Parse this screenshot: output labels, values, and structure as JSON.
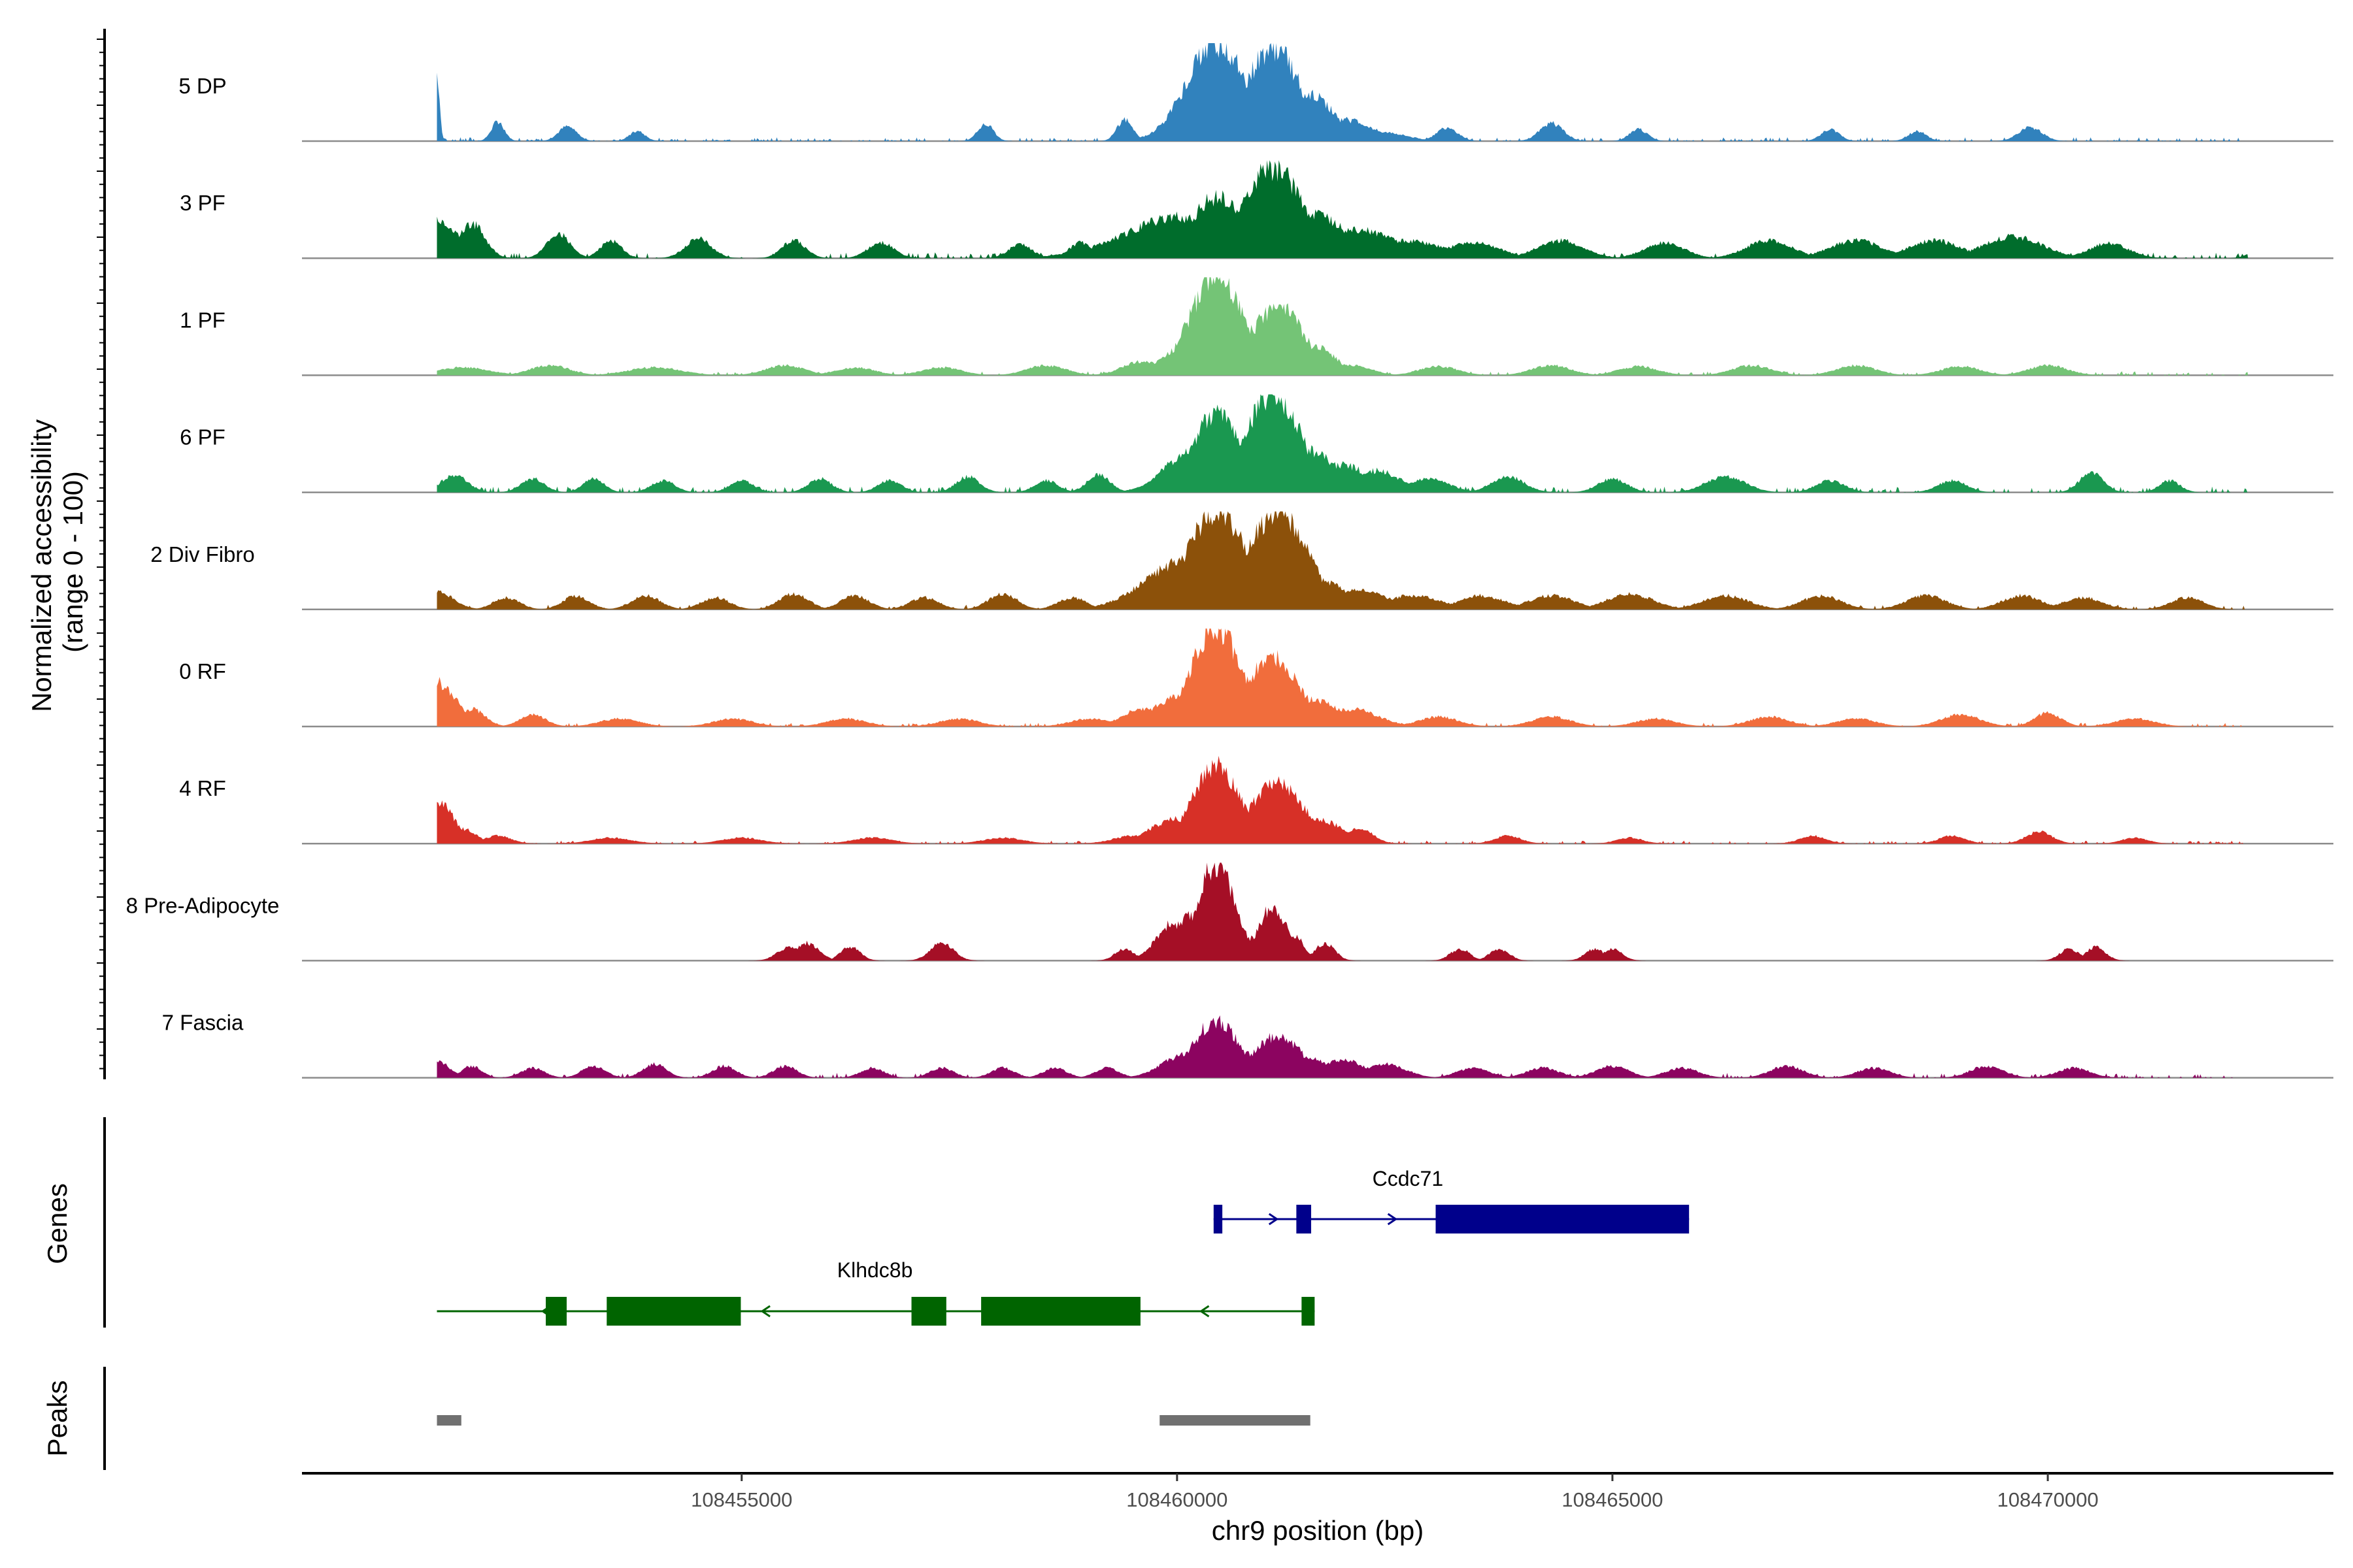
{
  "chart_data": {
    "type": "area",
    "title": "",
    "ylabel": "Normalized accessibility\n(range 0 - 100)",
    "xlabel": "chr9 position (bp)",
    "chromosome": "chr9",
    "xlim": [
      108449950,
      108473280
    ],
    "x_ticks": [
      108455000,
      108460000,
      108465000,
      108470000
    ],
    "x_tick_labels": [
      "108455000",
      "108460000",
      "108465000",
      "108470000"
    ],
    "y_range": [
      0,
      100
    ],
    "tracks": [
      {
        "name": "5 DP",
        "color": "#3182bd",
        "peaks": [
          [
            108451500,
            70,
            4
          ],
          [
            108452200,
            20,
            10
          ],
          [
            108453000,
            15,
            14
          ],
          [
            108453800,
            10,
            12
          ],
          [
            108457800,
            18,
            12
          ],
          [
            108459400,
            22,
            12
          ],
          [
            108460050,
            12,
            10
          ],
          [
            108460200,
            25,
            28
          ],
          [
            108460450,
            100,
            45
          ],
          [
            108460850,
            60,
            32
          ],
          [
            108461100,
            95,
            42
          ],
          [
            108461500,
            48,
            40
          ],
          [
            108461900,
            22,
            45
          ],
          [
            108462300,
            10,
            40
          ],
          [
            108463100,
            14,
            16
          ],
          [
            108464300,
            18,
            18
          ],
          [
            108465300,
            12,
            14
          ],
          [
            108467500,
            12,
            14
          ],
          [
            108468500,
            10,
            14
          ],
          [
            108469800,
            14,
            18
          ]
        ],
        "noise": 4
      },
      {
        "name": "3 PF",
        "color": "#006d2c",
        "peaks": [
          [
            108451500,
            40,
            30
          ],
          [
            108451900,
            35,
            20
          ],
          [
            108452900,
            25,
            18
          ],
          [
            108453500,
            18,
            16
          ],
          [
            108454500,
            20,
            20
          ],
          [
            108455600,
            18,
            18
          ],
          [
            108456600,
            16,
            20
          ],
          [
            108458200,
            14,
            18
          ],
          [
            108458900,
            16,
            18
          ],
          [
            108459600,
            22,
            30
          ],
          [
            108460050,
            42,
            85
          ],
          [
            108460450,
            62,
            40
          ],
          [
            108460750,
            50,
            35
          ],
          [
            108461100,
            92,
            45
          ],
          [
            108461550,
            45,
            55
          ],
          [
            108462000,
            30,
            70
          ],
          [
            108462600,
            18,
            60
          ],
          [
            108463400,
            16,
            40
          ],
          [
            108464400,
            18,
            35
          ],
          [
            108465600,
            16,
            30
          ],
          [
            108466800,
            18,
            35
          ],
          [
            108467800,
            18,
            40
          ],
          [
            108468700,
            18,
            40
          ],
          [
            108469600,
            22,
            45
          ],
          [
            108470700,
            15,
            30
          ],
          [
            108472500,
            14,
            18
          ]
        ],
        "noise": 6
      },
      {
        "name": "1 PF",
        "color": "#74c476",
        "peaks": [
          [
            108451800,
            8,
            40
          ],
          [
            108452800,
            10,
            30
          ],
          [
            108454000,
            8,
            40
          ],
          [
            108455500,
            10,
            30
          ],
          [
            108456300,
            8,
            30
          ],
          [
            108457300,
            8,
            30
          ],
          [
            108458500,
            10,
            30
          ],
          [
            108459600,
            14,
            30
          ],
          [
            108460100,
            30,
            35
          ],
          [
            108460450,
            100,
            40
          ],
          [
            108460850,
            45,
            30
          ],
          [
            108461150,
            70,
            40
          ],
          [
            108461550,
            30,
            35
          ],
          [
            108462000,
            10,
            30
          ],
          [
            108463000,
            9,
            30
          ],
          [
            108464300,
            10,
            30
          ],
          [
            108465300,
            9,
            30
          ],
          [
            108466600,
            10,
            30
          ],
          [
            108467800,
            10,
            30
          ],
          [
            108469000,
            9,
            30
          ],
          [
            108470000,
            10,
            30
          ]
        ],
        "noise": 4
      },
      {
        "name": "6 PF",
        "color": "#1a9850",
        "peaks": [
          [
            108451700,
            18,
            20
          ],
          [
            108452600,
            14,
            18
          ],
          [
            108453300,
            14,
            16
          ],
          [
            108454100,
            12,
            18
          ],
          [
            108455000,
            12,
            18
          ],
          [
            108455900,
            14,
            18
          ],
          [
            108456700,
            12,
            18
          ],
          [
            108457600,
            16,
            18
          ],
          [
            108458500,
            12,
            18
          ],
          [
            108459100,
            18,
            18
          ],
          [
            108459800,
            16,
            20
          ],
          [
            108460150,
            40,
            40
          ],
          [
            108460450,
            82,
            35
          ],
          [
            108460850,
            42,
            30
          ],
          [
            108461100,
            100,
            42
          ],
          [
            108461550,
            42,
            35
          ],
          [
            108461900,
            28,
            40
          ],
          [
            108462300,
            22,
            35
          ],
          [
            108462900,
            14,
            30
          ],
          [
            108463800,
            16,
            25
          ],
          [
            108465000,
            14,
            22
          ],
          [
            108466300,
            16,
            30
          ],
          [
            108467500,
            12,
            22
          ],
          [
            108468900,
            12,
            22
          ],
          [
            108470500,
            20,
            18
          ],
          [
            108471400,
            12,
            16
          ]
        ],
        "noise": 6
      },
      {
        "name": "2 Div Fibro",
        "color": "#8c510a",
        "peaks": [
          [
            108451500,
            18,
            25
          ],
          [
            108452300,
            12,
            20
          ],
          [
            108453100,
            14,
            20
          ],
          [
            108453900,
            14,
            22
          ],
          [
            108454700,
            12,
            22
          ],
          [
            108455600,
            16,
            22
          ],
          [
            108456300,
            14,
            22
          ],
          [
            108457100,
            12,
            22
          ],
          [
            108458000,
            16,
            22
          ],
          [
            108458800,
            12,
            22
          ],
          [
            108459600,
            14,
            25
          ],
          [
            108460100,
            50,
            60
          ],
          [
            108460450,
            100,
            45
          ],
          [
            108460850,
            40,
            35
          ],
          [
            108461150,
            100,
            45
          ],
          [
            108461600,
            30,
            45
          ],
          [
            108462000,
            20,
            55
          ],
          [
            108462700,
            14,
            45
          ],
          [
            108463500,
            14,
            35
          ],
          [
            108464300,
            14,
            35
          ],
          [
            108465200,
            16,
            35
          ],
          [
            108466300,
            14,
            35
          ],
          [
            108467400,
            14,
            30
          ],
          [
            108468600,
            14,
            30
          ],
          [
            108469700,
            14,
            30
          ],
          [
            108470400,
            12,
            30
          ],
          [
            108471600,
            12,
            25
          ]
        ],
        "noise": 5
      },
      {
        "name": "0 RF",
        "color": "#f16d3c",
        "peaks": [
          [
            108451500,
            45,
            30
          ],
          [
            108451900,
            18,
            20
          ],
          [
            108452600,
            12,
            20
          ],
          [
            108453600,
            8,
            30
          ],
          [
            108454900,
            8,
            30
          ],
          [
            108456200,
            8,
            30
          ],
          [
            108457500,
            8,
            30
          ],
          [
            108459000,
            8,
            30
          ],
          [
            108459600,
            18,
            30
          ],
          [
            108460050,
            32,
            40
          ],
          [
            108460450,
            100,
            38
          ],
          [
            108460800,
            30,
            30
          ],
          [
            108461100,
            70,
            40
          ],
          [
            108461550,
            28,
            40
          ],
          [
            108462000,
            18,
            40
          ],
          [
            108463000,
            10,
            30
          ],
          [
            108464300,
            10,
            30
          ],
          [
            108465500,
            8,
            30
          ],
          [
            108466800,
            10,
            30
          ],
          [
            108467800,
            8,
            30
          ],
          [
            108469000,
            12,
            30
          ],
          [
            108470000,
            14,
            20
          ],
          [
            108471000,
            8,
            30
          ]
        ],
        "noise": 4
      },
      {
        "name": "4 RF",
        "color": "#d73027",
        "peaks": [
          [
            108451500,
            45,
            25
          ],
          [
            108451800,
            15,
            20
          ],
          [
            108452200,
            8,
            20
          ],
          [
            108453500,
            6,
            30
          ],
          [
            108455000,
            6,
            30
          ],
          [
            108456500,
            6,
            30
          ],
          [
            108458000,
            6,
            30
          ],
          [
            108459500,
            8,
            30
          ],
          [
            108460000,
            25,
            40
          ],
          [
            108460450,
            80,
            35
          ],
          [
            108460850,
            30,
            30
          ],
          [
            108461150,
            62,
            40
          ],
          [
            108461600,
            25,
            40
          ],
          [
            108462100,
            15,
            20
          ],
          [
            108463800,
            8,
            20
          ],
          [
            108465200,
            6,
            20
          ],
          [
            108467300,
            8,
            20
          ],
          [
            108468900,
            8,
            20
          ],
          [
            108469900,
            12,
            20
          ],
          [
            108471000,
            6,
            20
          ]
        ],
        "noise": 3
      },
      {
        "name": "8 Pre-Adipocyte",
        "color": "#a50f26",
        "peaks": [
          [
            108455550,
            14,
            18
          ],
          [
            108455750,
            18,
            18
          ],
          [
            108456250,
            14,
            15
          ],
          [
            108457300,
            18,
            18
          ],
          [
            108459400,
            12,
            15
          ],
          [
            108459950,
            38,
            25
          ],
          [
            108460150,
            45,
            22
          ],
          [
            108460450,
            100,
            28
          ],
          [
            108460600,
            40,
            20
          ],
          [
            108460900,
            25,
            18
          ],
          [
            108461100,
            55,
            22
          ],
          [
            108461350,
            25,
            15
          ],
          [
            108461700,
            18,
            15
          ],
          [
            108463250,
            12,
            15
          ],
          [
            108463700,
            12,
            15
          ],
          [
            108464800,
            12,
            15
          ],
          [
            108465000,
            12,
            15
          ],
          [
            108470250,
            12,
            15
          ],
          [
            108470550,
            14,
            15
          ]
        ],
        "noise": 0
      },
      {
        "name": "7 Fascia",
        "color": "#8c0460",
        "peaks": [
          [
            108451500,
            18,
            18
          ],
          [
            108451900,
            12,
            15
          ],
          [
            108452600,
            10,
            18
          ],
          [
            108453300,
            12,
            18
          ],
          [
            108454000,
            14,
            18
          ],
          [
            108454800,
            12,
            18
          ],
          [
            108455500,
            12,
            18
          ],
          [
            108456500,
            10,
            18
          ],
          [
            108457300,
            10,
            18
          ],
          [
            108458000,
            10,
            18
          ],
          [
            108458600,
            10,
            18
          ],
          [
            108459200,
            10,
            18
          ],
          [
            108459800,
            10,
            18
          ],
          [
            108460100,
            24,
            35
          ],
          [
            108460450,
            58,
            35
          ],
          [
            108460800,
            25,
            30
          ],
          [
            108461150,
            42,
            38
          ],
          [
            108461500,
            20,
            35
          ],
          [
            108461900,
            18,
            35
          ],
          [
            108462400,
            14,
            30
          ],
          [
            108463400,
            10,
            25
          ],
          [
            108464200,
            10,
            25
          ],
          [
            108465000,
            12,
            25
          ],
          [
            108465800,
            10,
            25
          ],
          [
            108467000,
            12,
            25
          ],
          [
            108468000,
            10,
            25
          ],
          [
            108469300,
            12,
            25
          ],
          [
            108470300,
            10,
            25
          ]
        ],
        "noise": 5
      }
    ],
    "genes": [
      {
        "name": "Ccdc71",
        "strand": "+",
        "color": "#00008b",
        "start": 108460420,
        "end": 108465880,
        "exons": [
          [
            108460420,
            108460520
          ],
          [
            108461370,
            108461540
          ],
          [
            108462970,
            108465880
          ]
        ]
      },
      {
        "name": "Klhdc8b",
        "strand": "-",
        "color": "#006400",
        "start": 108451500,
        "end": 108461580,
        "exons": [
          [
            108452750,
            108452990
          ],
          [
            108453450,
            108454990
          ],
          [
            108456950,
            108457350
          ],
          [
            108457750,
            108459580
          ],
          [
            108461430,
            108461580
          ]
        ]
      }
    ],
    "peaks": [
      [
        108451500,
        108451780
      ],
      [
        108459800,
        108461530
      ]
    ],
    "track_group_labels": {
      "genes": "Genes",
      "peaks": "Peaks"
    }
  }
}
